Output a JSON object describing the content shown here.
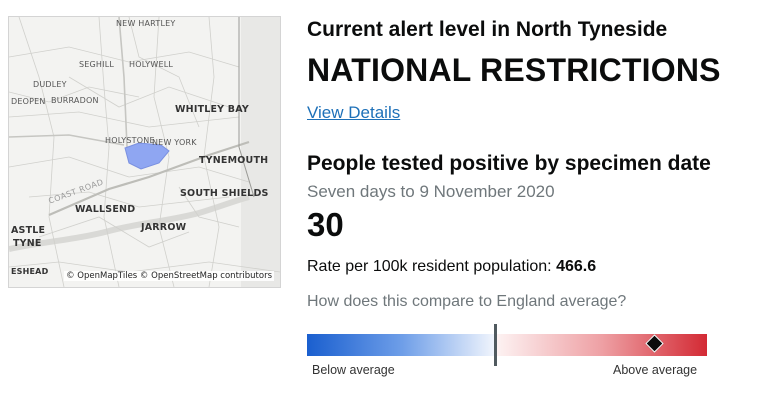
{
  "map": {
    "labels": {
      "new_hartley": "NEW HARTLEY",
      "seghill": "SEGHILL",
      "holywell": "HOLYWELL",
      "dudley": "DUDLEY",
      "deopen": "DEOPEN",
      "burradon": "BURRADON",
      "whitley_bay": "WHITLEY BAY",
      "holystone": "HOLYSTONE",
      "new_york": "NEW YORK",
      "tynemouth": "TYNEMOUTH",
      "coast_road": "COAST ROAD",
      "south_shields": "SOUTH SHIELDS",
      "wallsend": "WALLSEND",
      "jarrow": "JARROW",
      "astle": "ASTLE",
      "tyne": "TYNE",
      "eshead": "ESHEAD"
    },
    "attribution": "© OpenMapTiles © OpenStreetMap contributors",
    "highlight_color": "#8fa6f2"
  },
  "alert": {
    "title": "Current alert level in North Tyneside",
    "level": "NATIONAL RESTRICTIONS",
    "link": "View Details"
  },
  "metric": {
    "title": "People tested positive by specimen date",
    "subtitle": "Seven days to 9 November 2020",
    "value": "30",
    "rate_label": "Rate per 100k resident population:",
    "rate_value": "466.6",
    "compare_question": "How does this compare to England average?"
  },
  "comparison": {
    "below_label": "Below average",
    "above_label": "Above average",
    "below_color": "#1a5fcf",
    "above_color": "#d32a34"
  }
}
